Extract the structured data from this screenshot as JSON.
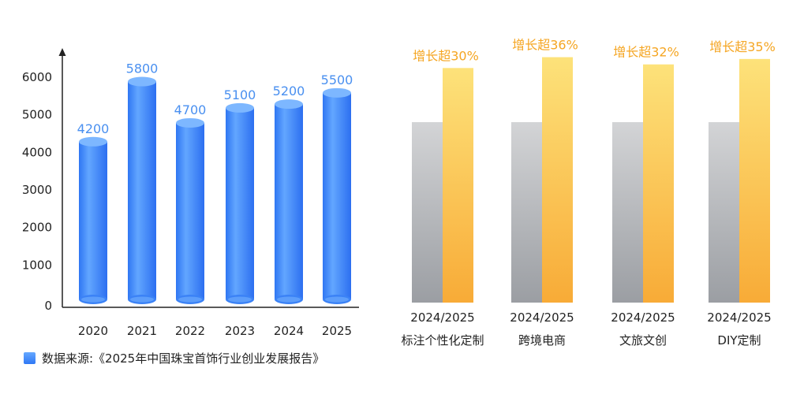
{
  "colors": {
    "blue_light": "#6eadff",
    "blue_dark": "#2f76f3",
    "blue_label": "#4a90f0",
    "gray_light": "#d3d4d6",
    "gray_dark": "#9b9ea3",
    "orange_light": "#fde27a",
    "orange_dark": "#f8ab37",
    "orange_label": "#f5a623",
    "text": "#222222"
  },
  "chart_data": [
    {
      "type": "bar",
      "style": "3d-cylinder",
      "categories": [
        "2020",
        "2021",
        "2022",
        "2023",
        "2024",
        "2025"
      ],
      "values": [
        4200,
        5800,
        4700,
        5100,
        5200,
        5500
      ],
      "data_labels": [
        "4200",
        "5800",
        "4700",
        "5100",
        "5200",
        "5500"
      ],
      "ylim": [
        0,
        6800
      ],
      "yticks": [
        "0",
        "1000",
        "2000",
        "3000",
        "4000",
        "5000",
        "6000"
      ],
      "ytick_values": [
        0,
        1000,
        2000,
        3000,
        4000,
        5000,
        6000
      ],
      "grid": false,
      "title": "",
      "xlabel": "",
      "ylabel": ""
    },
    {
      "type": "bar",
      "style": "paired",
      "category_years": [
        "2024/2025",
        "2024/2025",
        "2024/2025",
        "2024/2025"
      ],
      "categories": [
        "标注个性化定制",
        "跨境电商",
        "文旅文创",
        "DIY定制"
      ],
      "series": [
        {
          "values": [
            100,
            100,
            100,
            100
          ]
        },
        {
          "values": [
            130,
            136,
            132,
            135
          ]
        }
      ],
      "data_labels": [
        "增长超30%",
        "增长超36%",
        "增长超32%",
        "增长超35%"
      ],
      "grid": false,
      "title": "",
      "xlabel": "",
      "ylabel": ""
    }
  ],
  "source": "数据来源:《2025年中国珠宝首饰行业创业发展报告》"
}
